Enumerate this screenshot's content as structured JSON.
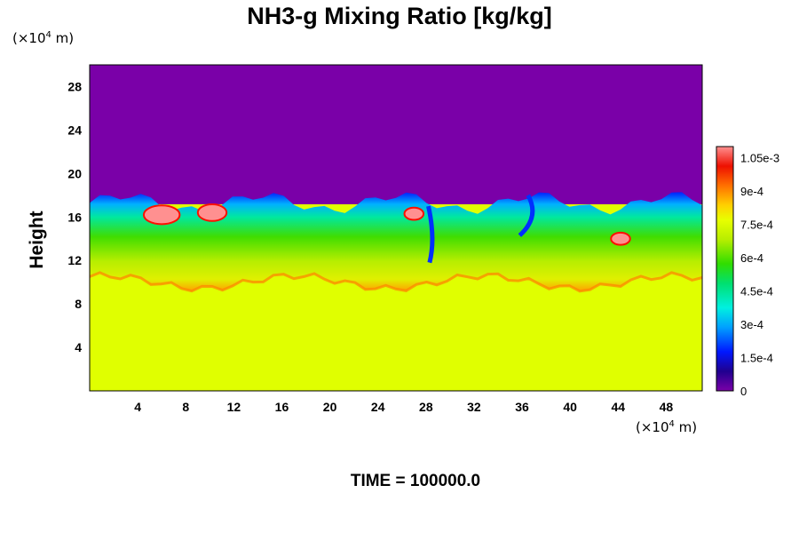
{
  "chart_data": {
    "type": "heatmap",
    "title": "NH3-g Mixing Ratio [kg/kg]",
    "ylabel": "Height",
    "xlabel": "",
    "x_unit_prefix": "(×10",
    "x_unit_exp": "4",
    "x_unit_suffix": " m)",
    "y_unit_prefix": "(×10",
    "y_unit_exp": "4",
    "y_unit_suffix": " m)",
    "xlim": [
      0,
      51
    ],
    "ylim": [
      0,
      30
    ],
    "x_ticks": [
      "4",
      "8",
      "12",
      "16",
      "20",
      "24",
      "28",
      "32",
      "36",
      "40",
      "44",
      "48"
    ],
    "x_tick_values": [
      4,
      8,
      12,
      16,
      20,
      24,
      28,
      32,
      36,
      40,
      44,
      48
    ],
    "y_ticks": [
      "4",
      "8",
      "12",
      "16",
      "20",
      "24",
      "28"
    ],
    "y_tick_values": [
      4,
      8,
      12,
      16,
      20,
      24,
      28
    ],
    "colorbar": {
      "min": 0,
      "max": 0.0011,
      "tick_labels": [
        "0",
        "1.5e-4",
        "3e-4",
        "4.5e-4",
        "6e-4",
        "7.5e-4",
        "9e-4",
        "1.05e-3"
      ],
      "tick_values": [
        0,
        0.00015,
        0.0003,
        0.00045,
        0.0006,
        0.00075,
        0.0009,
        0.00105
      ]
    },
    "field_description_values": {
      "upper_layer_value": 0,
      "lower_layer_value": 0.00077,
      "boundary_height_mean": 17.5,
      "mixed_layer_bottom": 10
    },
    "time_label": "TIME = 100000.0"
  }
}
